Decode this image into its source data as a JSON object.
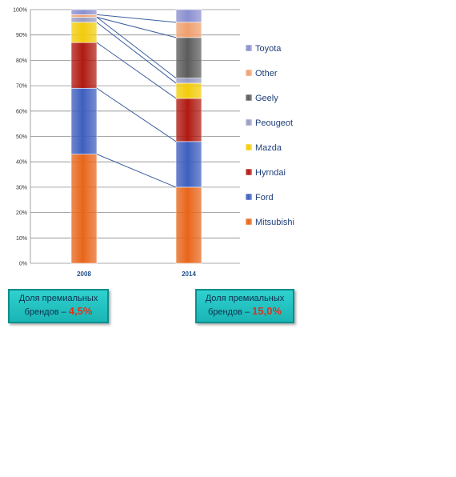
{
  "chart_data": {
    "type": "stacked-bar",
    "categories": [
      "2008",
      "2014"
    ],
    "series": [
      {
        "name": "Mitsubishi",
        "color": "#e8661a",
        "values": [
          43,
          30
        ]
      },
      {
        "name": "Ford",
        "color": "#3f5fbf",
        "values": [
          26,
          18
        ]
      },
      {
        "name": "Hyrndai",
        "color": "#b01a12",
        "values": [
          18,
          17
        ]
      },
      {
        "name": "Mazda",
        "color": "#f2cc0c",
        "values": [
          8,
          6
        ]
      },
      {
        "name": "Peougeot",
        "color": "#9a9cc4",
        "values": [
          2,
          2
        ]
      },
      {
        "name": "Geely",
        "color": "#5c5c5c",
        "values": [
          0,
          16
        ]
      },
      {
        "name": "Other",
        "color": "#f0a070",
        "values": [
          1,
          6
        ]
      },
      {
        "name": "Toyota",
        "color": "#8a8fd0",
        "values": [
          2,
          5
        ]
      }
    ],
    "y_ticks": [
      "0%",
      "10%",
      "20%",
      "30%",
      "40%",
      "50%",
      "60%",
      "70%",
      "80%",
      "90%",
      "100%"
    ],
    "ylim": [
      0,
      100
    ],
    "grid": true,
    "legend_position": "right",
    "connector_lines": true
  },
  "boxes": [
    {
      "line1": "Доля премиальных",
      "line2": "брендов –",
      "value": "4,5%"
    },
    {
      "line1": "Доля премиальных",
      "line2": "брендов –",
      "value": "15,0%"
    }
  ]
}
